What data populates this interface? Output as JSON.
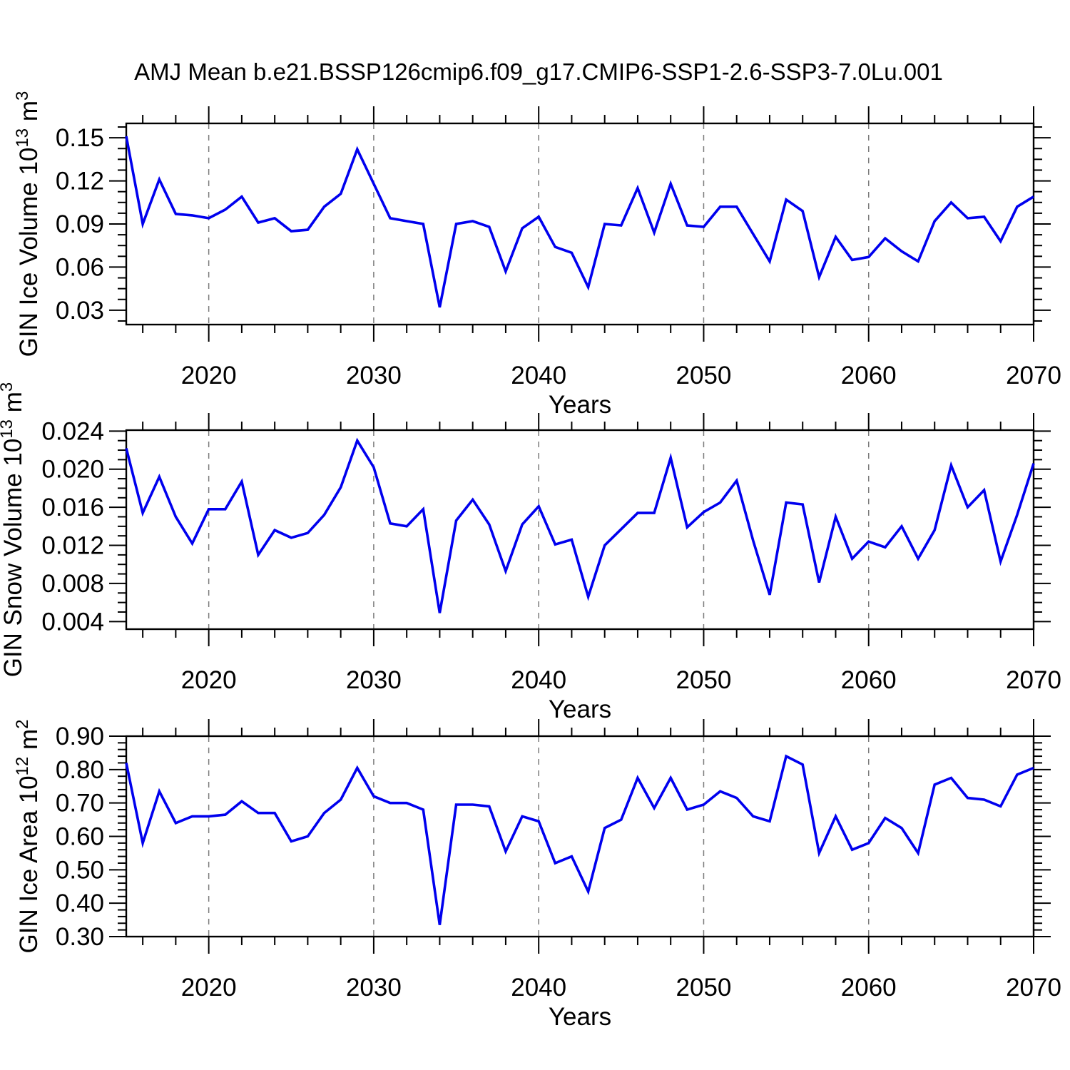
{
  "title": "AMJ Mean b.e21.BSSP126cmip6.f09_g17.CMIP6-SSP1-2.6-SSP3-7.0Lu.001",
  "colors": {
    "line": "#0000ee",
    "axis": "#000000",
    "grid": "#7a7a7a",
    "background": "#ffffff"
  },
  "x": {
    "label": "Years",
    "min": 2015,
    "max": 2070,
    "tick_years": [
      2020,
      2030,
      2040,
      2050,
      2060,
      2070
    ],
    "tick_labels": [
      "2020",
      "2030",
      "2040",
      "2050",
      "2060",
      "2070"
    ],
    "minor_step_years": 2,
    "grid_years": [
      2020,
      2030,
      2040,
      2050,
      2060
    ]
  },
  "chart_data": [
    {
      "type": "line",
      "name": "ice-volume",
      "ylabel": [
        {
          "t": "GIN Ice Volume 10",
          "sup": false
        },
        {
          "t": "13",
          "sup": true
        },
        {
          "t": " m",
          "sup": false
        },
        {
          "t": "3",
          "sup": true
        }
      ],
      "ylim": [
        0.02,
        0.16
      ],
      "yticks": [
        0.03,
        0.06,
        0.09,
        0.12,
        0.15
      ],
      "ytick_labels": [
        "0.03",
        "0.06",
        "0.09",
        "0.12",
        "0.15"
      ],
      "yminor_step": 0.0075,
      "x_start": 2015,
      "x_end": 2070,
      "values": [
        0.151,
        0.09,
        0.121,
        0.097,
        0.096,
        0.094,
        0.1,
        0.109,
        0.091,
        0.094,
        0.085,
        0.086,
        0.102,
        0.111,
        0.142,
        0.118,
        0.094,
        0.092,
        0.09,
        0.032,
        0.09,
        0.092,
        0.088,
        0.057,
        0.087,
        0.095,
        0.074,
        0.07,
        0.046,
        0.09,
        0.089,
        0.115,
        0.084,
        0.118,
        0.089,
        0.088,
        0.102,
        0.102,
        0.083,
        0.064,
        0.107,
        0.099,
        0.053,
        0.081,
        0.065,
        0.067,
        0.08,
        0.071,
        0.064,
        0.092,
        0.105,
        0.094,
        0.095,
        0.078,
        0.102,
        0.109
      ]
    },
    {
      "type": "line",
      "name": "snow-volume",
      "ylabel": [
        {
          "t": "GIN Snow Volume 10",
          "sup": false
        },
        {
          "t": "13",
          "sup": true
        },
        {
          "t": " m",
          "sup": false
        },
        {
          "t": "3",
          "sup": true
        }
      ],
      "ylim": [
        0.0032,
        0.0241
      ],
      "yticks": [
        0.004,
        0.008,
        0.012,
        0.016,
        0.02,
        0.024
      ],
      "ytick_labels": [
        "0.004",
        "0.008",
        "0.012",
        "0.016",
        "0.020",
        "0.024"
      ],
      "yminor_step": 0.001,
      "x_start": 2015,
      "x_end": 2070,
      "values": [
        0.0222,
        0.0154,
        0.0192,
        0.015,
        0.0122,
        0.0158,
        0.0158,
        0.0187,
        0.011,
        0.0136,
        0.0128,
        0.0133,
        0.0152,
        0.0181,
        0.023,
        0.0202,
        0.0143,
        0.014,
        0.0158,
        0.0049,
        0.0146,
        0.0168,
        0.0142,
        0.0093,
        0.0142,
        0.0161,
        0.0121,
        0.0126,
        0.0066,
        0.012,
        0.0137,
        0.0154,
        0.0154,
        0.0212,
        0.0139,
        0.0155,
        0.0165,
        0.0188,
        0.0125,
        0.0068,
        0.0165,
        0.0163,
        0.0081,
        0.015,
        0.0106,
        0.0124,
        0.0118,
        0.014,
        0.0106,
        0.0136,
        0.0204,
        0.016,
        0.0178,
        0.0103,
        0.0152,
        0.0206
      ]
    },
    {
      "type": "line",
      "name": "ice-area",
      "ylabel": [
        {
          "t": "GIN Ice Area 10",
          "sup": false
        },
        {
          "t": "12",
          "sup": true
        },
        {
          "t": " m",
          "sup": false
        },
        {
          "t": "2",
          "sup": true
        }
      ],
      "ylim": [
        0.3,
        0.9
      ],
      "yticks": [
        0.3,
        0.4,
        0.5,
        0.6,
        0.7,
        0.8,
        0.9
      ],
      "ytick_labels": [
        "0.30",
        "0.40",
        "0.50",
        "0.60",
        "0.70",
        "0.80",
        "0.90"
      ],
      "yminor_step": 0.02,
      "x_start": 2015,
      "x_end": 2070,
      "values": [
        0.82,
        0.58,
        0.735,
        0.64,
        0.66,
        0.66,
        0.665,
        0.705,
        0.67,
        0.67,
        0.585,
        0.6,
        0.67,
        0.71,
        0.805,
        0.72,
        0.7,
        0.7,
        0.68,
        0.335,
        0.695,
        0.695,
        0.69,
        0.555,
        0.66,
        0.645,
        0.52,
        0.54,
        0.435,
        0.625,
        0.65,
        0.775,
        0.685,
        0.775,
        0.68,
        0.695,
        0.735,
        0.715,
        0.66,
        0.645,
        0.84,
        0.815,
        0.55,
        0.66,
        0.56,
        0.58,
        0.655,
        0.625,
        0.55,
        0.755,
        0.775,
        0.715,
        0.71,
        0.69,
        0.785,
        0.805
      ]
    }
  ]
}
